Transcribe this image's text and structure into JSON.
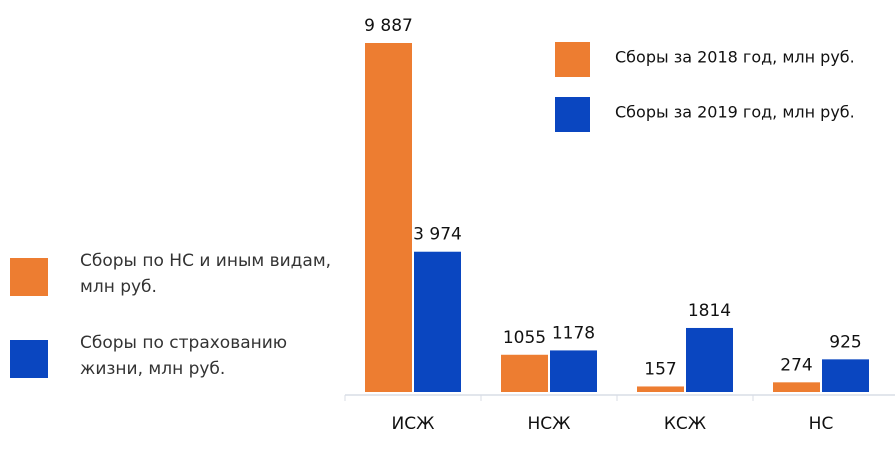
{
  "chart_data": {
    "type": "bar",
    "categories": [
      "ИСЖ",
      "НСЖ",
      "КСЖ",
      "НС"
    ],
    "series": [
      {
        "name": "Сборы за 2018 год, млн руб.",
        "color": "#ed7d31",
        "values": [
          9887,
          1055,
          157,
          274
        ],
        "value_labels": [
          "9 887",
          "1055",
          "157",
          "274"
        ]
      },
      {
        "name": "Сборы за 2019 год, млн руб.",
        "color": "#0a46c0",
        "values": [
          3974,
          1178,
          1814,
          925
        ],
        "value_labels": [
          "3 974",
          "1178",
          "1814",
          "925"
        ]
      }
    ],
    "legend": "top-right",
    "side_legend": [
      {
        "text": "Сборы по НС и иным видам, млн руб.",
        "color": "#ed7d31"
      },
      {
        "text": "Сборы по страхованию жизни, млн руб.",
        "color": "#0a46c0"
      }
    ]
  }
}
